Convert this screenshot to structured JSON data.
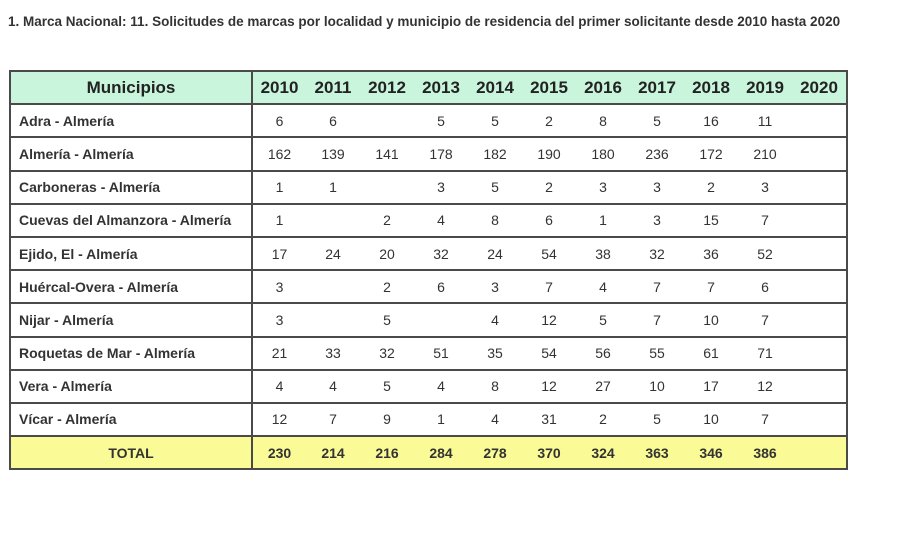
{
  "title": "1. Marca Nacional: 11. Solicitudes de marcas por localidad y municipio de residencia del primer solicitante desde 2010 hasta 2020",
  "colors": {
    "header_bg": "#c8f5dc",
    "total_bg": "#fafa96",
    "border": "#4a4a4a"
  },
  "table": {
    "header": {
      "label": "Municipios",
      "years": [
        "2010",
        "2011",
        "2012",
        "2013",
        "2014",
        "2015",
        "2016",
        "2017",
        "2018",
        "2019",
        "2020"
      ]
    },
    "rows": [
      {
        "name": "Adra - Almería",
        "values": [
          "6",
          "6",
          "",
          "5",
          "5",
          "2",
          "8",
          "5",
          "16",
          "11",
          ""
        ]
      },
      {
        "name": "Almería - Almería",
        "values": [
          "162",
          "139",
          "141",
          "178",
          "182",
          "190",
          "180",
          "236",
          "172",
          "210",
          ""
        ]
      },
      {
        "name": "Carboneras - Almería",
        "values": [
          "1",
          "1",
          "",
          "3",
          "5",
          "2",
          "3",
          "3",
          "2",
          "3",
          ""
        ]
      },
      {
        "name": "Cuevas del Almanzora - Almería",
        "values": [
          "1",
          "",
          "2",
          "4",
          "8",
          "6",
          "1",
          "3",
          "15",
          "7",
          ""
        ]
      },
      {
        "name": "Ejido, El - Almería",
        "values": [
          "17",
          "24",
          "20",
          "32",
          "24",
          "54",
          "38",
          "32",
          "36",
          "52",
          ""
        ]
      },
      {
        "name": "Huércal-Overa - Almería",
        "values": [
          "3",
          "",
          "2",
          "6",
          "3",
          "7",
          "4",
          "7",
          "7",
          "6",
          ""
        ]
      },
      {
        "name": "Nijar - Almería",
        "values": [
          "3",
          "",
          "5",
          "",
          "4",
          "12",
          "5",
          "7",
          "10",
          "7",
          ""
        ]
      },
      {
        "name": "Roquetas de Mar - Almería",
        "values": [
          "21",
          "33",
          "32",
          "51",
          "35",
          "54",
          "56",
          "55",
          "61",
          "71",
          ""
        ]
      },
      {
        "name": "Vera - Almería",
        "values": [
          "4",
          "4",
          "5",
          "4",
          "8",
          "12",
          "27",
          "10",
          "17",
          "12",
          ""
        ]
      },
      {
        "name": "Vícar - Almería",
        "values": [
          "12",
          "7",
          "9",
          "1",
          "4",
          "31",
          "2",
          "5",
          "10",
          "7",
          ""
        ]
      }
    ],
    "total": {
      "label": "TOTAL",
      "values": [
        "230",
        "214",
        "216",
        "284",
        "278",
        "370",
        "324",
        "363",
        "346",
        "386",
        ""
      ]
    }
  }
}
